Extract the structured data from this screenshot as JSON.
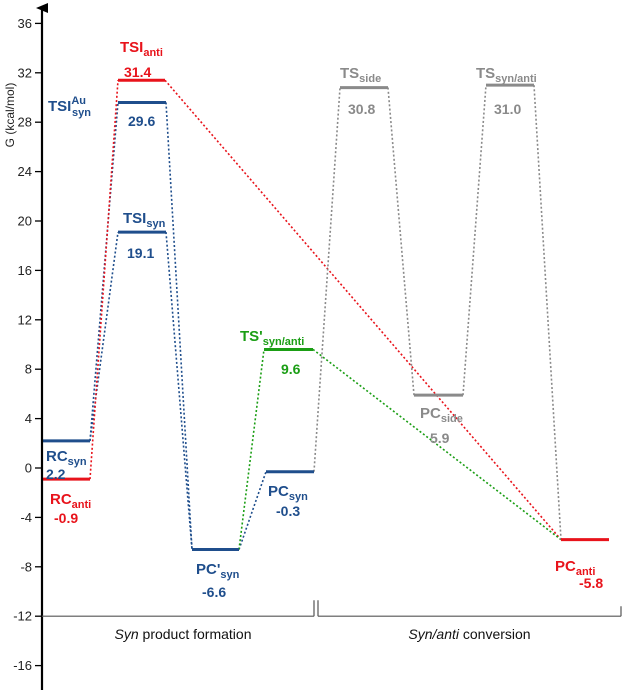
{
  "colors": {
    "blue": "#1f4e8c",
    "red": "#e8131b",
    "green": "#1b9e15",
    "gray": "#8a8a8a"
  },
  "chart_data": {
    "type": "energy-profile",
    "ylabel": "G (kcal/mol)",
    "ylim": [
      -17,
      37
    ],
    "yticks": [
      36,
      32,
      28,
      24,
      20,
      16,
      12,
      8,
      4,
      0,
      -4,
      -8,
      -12,
      -16
    ],
    "sections": [
      {
        "label_italic": "Syn",
        "label_rest": " product formation"
      },
      {
        "label_italic": "Syn/anti",
        "label_rest": " conversion"
      }
    ],
    "states": [
      {
        "id": "RCsyn",
        "base": "RC",
        "sub": "syn",
        "value": 2.2,
        "value_text": "2.2",
        "color": "blue"
      },
      {
        "id": "RCanti",
        "base": "RC",
        "sub": "anti",
        "value": -0.9,
        "value_text": "-0.9",
        "color": "red"
      },
      {
        "id": "TSIanti",
        "base": "TSI",
        "sub": "anti",
        "value": 31.4,
        "value_text": "31.4",
        "color": "red"
      },
      {
        "id": "TSIAusyn",
        "base": "TSI",
        "sup": "Au",
        "sub": "syn",
        "value": 29.6,
        "value_text": "29.6",
        "color": "blue"
      },
      {
        "id": "TSIsyn",
        "base": "TSI",
        "sub": "syn",
        "value": 19.1,
        "value_text": "19.1",
        "color": "blue"
      },
      {
        "id": "PCpsyn",
        "base": "PC'",
        "sub": "syn",
        "value": -6.6,
        "value_text": "-6.6",
        "color": "blue"
      },
      {
        "id": "PCsyn",
        "base": "PC",
        "sub": "syn",
        "value": -0.3,
        "value_text": "-0.3",
        "color": "blue"
      },
      {
        "id": "TSpsynanti",
        "base": "TS'",
        "sub": "syn/anti",
        "value": 9.6,
        "value_text": "9.6",
        "color": "green"
      },
      {
        "id": "TSside",
        "base": "TS",
        "sub": "side",
        "value": 30.8,
        "value_text": "30.8",
        "color": "gray"
      },
      {
        "id": "PCside",
        "base": "PC",
        "sub": "side",
        "value": 5.9,
        "value_text": "5.9",
        "color": "gray"
      },
      {
        "id": "TSsynanti",
        "base": "TS",
        "sub": "syn/anti",
        "value": 31.0,
        "value_text": "31.0",
        "color": "gray"
      },
      {
        "id": "PCanti",
        "base": "PC",
        "sub": "anti",
        "value": -5.8,
        "value_text": "-5.8",
        "color": "red"
      }
    ],
    "connections": [
      {
        "from": "RCsyn",
        "to": "TSIAusyn",
        "color": "blue"
      },
      {
        "from": "TSIAusyn",
        "to": "PCpsyn",
        "color": "blue"
      },
      {
        "from": "RCsyn",
        "to": "TSIsyn",
        "color": "blue"
      },
      {
        "from": "TSIsyn",
        "to": "PCpsyn",
        "color": "blue"
      },
      {
        "from": "PCpsyn",
        "to": "PCsyn",
        "color": "blue"
      },
      {
        "from": "RCanti",
        "to": "TSIanti",
        "color": "red"
      },
      {
        "from": "TSIanti",
        "to": "PCanti",
        "color": "red"
      },
      {
        "from": "PCpsyn",
        "to": "TSpsynanti",
        "color": "green"
      },
      {
        "from": "TSpsynanti",
        "to": "PCanti",
        "color": "green"
      },
      {
        "from": "PCsyn",
        "to": "TSside",
        "color": "gray"
      },
      {
        "from": "TSside",
        "to": "PCside",
        "color": "gray"
      },
      {
        "from": "PCside",
        "to": "TSsynanti",
        "color": "gray"
      },
      {
        "from": "TSsynanti",
        "to": "PCanti",
        "color": "gray"
      }
    ]
  }
}
